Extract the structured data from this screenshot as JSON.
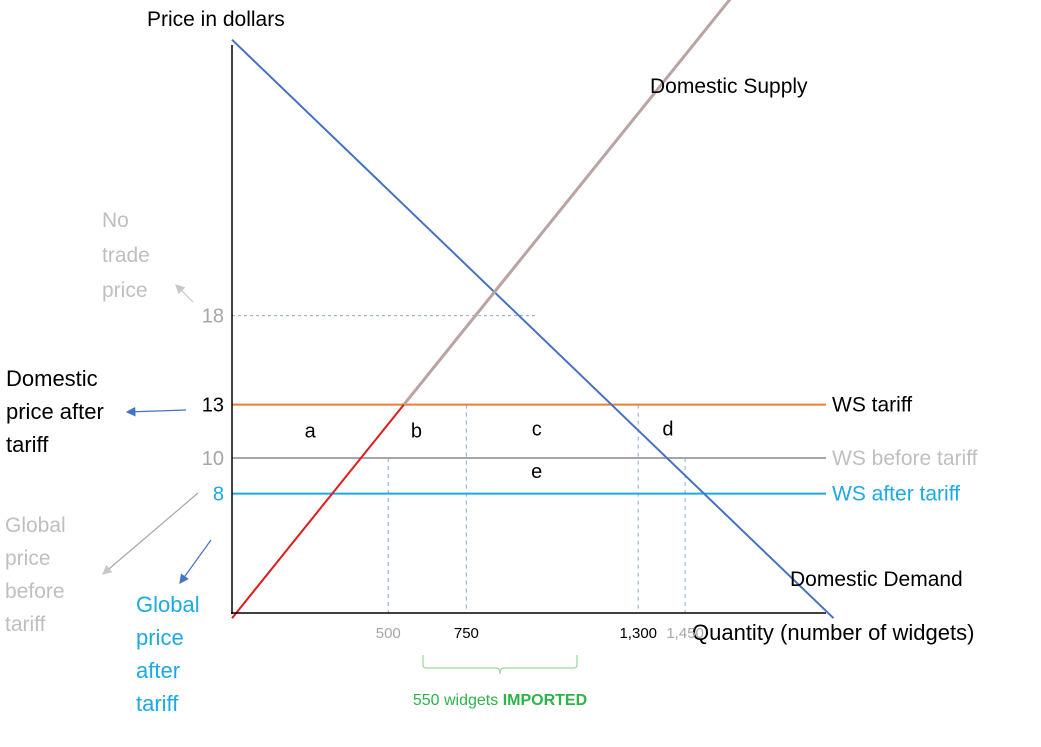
{
  "chart_data": {
    "type": "line",
    "title": "",
    "ylabel": "Price in dollars",
    "xlabel": "Quantity (number of widgets)",
    "axes": {
      "x_ticks": [
        {
          "value": 500,
          "label": "500",
          "color": "#a6a6a6"
        },
        {
          "value": 750,
          "label": "750",
          "color": "#000000"
        },
        {
          "value": 1300,
          "label": "1,300",
          "color": "#000000"
        },
        {
          "value": 1450,
          "label": "1,450",
          "color": "#a6a6a6"
        }
      ],
      "y_ticks": [
        {
          "value": 18,
          "label": "18",
          "color": "#a6a6a6"
        },
        {
          "value": 13,
          "label": "13",
          "color": "#000000"
        },
        {
          "value": 10,
          "label": "10",
          "color": "#a6a6a6"
        },
        {
          "value": 8,
          "label": "8",
          "color": "#1ca9e6"
        }
      ]
    },
    "series": [
      {
        "name": "Domestic Demand",
        "color": "#4472c4",
        "points": [
          [
            0,
            33.5
          ],
          [
            1925,
            1
          ]
        ]
      },
      {
        "name": "Domestic Supply",
        "color": "#e11a1a",
        "upper_color": "#b9a3a3",
        "switch_price": 13,
        "points": [
          [
            0,
            1
          ],
          [
            1925,
            43
          ]
        ]
      }
    ],
    "price_lines": [
      {
        "label": "WS tariff",
        "value": 13,
        "color": "#ed7d31",
        "label_color": "#000000"
      },
      {
        "label": "WS before tariff",
        "value": 10,
        "color": "#a6a6a6",
        "label_color": "#bfbfbf"
      },
      {
        "label": "WS after tariff",
        "value": 8,
        "color": "#1ca9e6",
        "label_color": "#1ca9e6"
      }
    ],
    "guides": [
      {
        "x": 500,
        "y": 10
      },
      {
        "x": 750,
        "y": 13
      },
      {
        "x": 1300,
        "y": 13
      },
      {
        "x": 1450,
        "y": 10
      },
      {
        "x": 0,
        "y": 18,
        "x2": 975
      }
    ],
    "areas": [
      {
        "label": "a",
        "x": 250,
        "y": 11.5
      },
      {
        "label": "b",
        "x": 590,
        "y": 11.5
      },
      {
        "label": "c",
        "x": 975,
        "y": 11.6
      },
      {
        "label": "d",
        "x": 1395,
        "y": 11.6
      },
      {
        "label": "e",
        "x": 975,
        "y": 9.2
      }
    ],
    "annotations": {
      "no_trade": {
        "lines": [
          "No",
          "trade",
          "price"
        ],
        "color": "#bfbfbf"
      },
      "domestic_after": {
        "lines": [
          "Domestic",
          "price after",
          "tariff"
        ],
        "color": "#000000"
      },
      "global_before": {
        "lines": [
          "Global",
          "price",
          "before",
          "tariff"
        ],
        "color": "#bfbfbf"
      },
      "global_after": {
        "lines": [
          "Global",
          "price",
          "after",
          "tariff"
        ],
        "color": "#1ca9e6"
      },
      "imported": {
        "count": "550 widgets ",
        "strong": "IMPORTED",
        "color": "#2db34a"
      }
    }
  }
}
